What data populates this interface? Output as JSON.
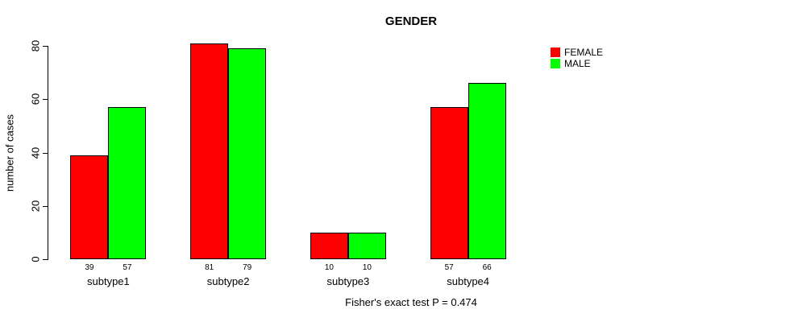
{
  "chart_data": {
    "type": "bar",
    "title": "GENDER",
    "ylabel": "number of cases",
    "xlabel": "",
    "categories": [
      "subtype1",
      "subtype2",
      "subtype3",
      "subtype4"
    ],
    "series": [
      {
        "name": "FEMALE",
        "color": "#ff0000",
        "values": [
          39,
          81,
          10,
          57
        ]
      },
      {
        "name": "MALE",
        "color": "#00ff00",
        "values": [
          57,
          79,
          10,
          66
        ]
      }
    ],
    "ylim": [
      0,
      80
    ],
    "yticks": [
      0,
      20,
      40,
      60,
      80
    ],
    "bar_value_labels_shown": true,
    "grid": false,
    "legend_position": "top-right",
    "annotation": "Fisher's exact test P = 0.474",
    "bar_border_color": "#000000"
  }
}
